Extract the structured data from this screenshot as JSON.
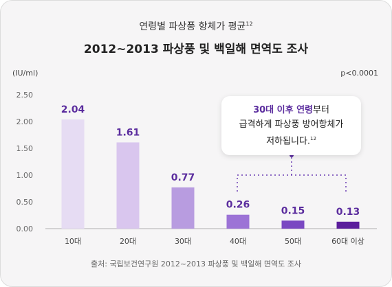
{
  "header": {
    "subtitle": "연령별 파상풍 항체가 평균",
    "subtitle_ref": "12",
    "title": "2012~2013 파상풍 및 백일해 면역도 조사"
  },
  "footer": {
    "source": "출처: 국립보건연구원 2012~2013 파상풍 및 백일해 면역도 조사"
  },
  "callout": {
    "highlight": "30대 이후 연령",
    "line1_rest": "부터",
    "line2": "급격하게 파상풍 방어항체가",
    "line3": "저하됩니다.",
    "ref": "12"
  },
  "chart_data": {
    "type": "bar",
    "categories": [
      "10대",
      "20대",
      "30대",
      "40대",
      "50대",
      "60대 이상"
    ],
    "values": [
      2.04,
      1.61,
      0.77,
      0.26,
      0.15,
      0.13
    ],
    "value_labels": [
      "2.04",
      "1.61",
      "0.77",
      "0.26",
      "0.15",
      "0.13"
    ],
    "bar_colors": [
      "#e6dcf3",
      "#d9c6ee",
      "#b89ce0",
      "#9c73d6",
      "#7a48c2",
      "#5b1e9c"
    ],
    "value_label_color": "#5b2d9e",
    "ylabel": "(IU/ml)",
    "annotation": "p<0.0001",
    "ylim": [
      0,
      2.5
    ],
    "yticks": [
      "0.00",
      "0.50",
      "1.00",
      "1.50",
      "2.00",
      "2.50"
    ],
    "grid": false
  }
}
